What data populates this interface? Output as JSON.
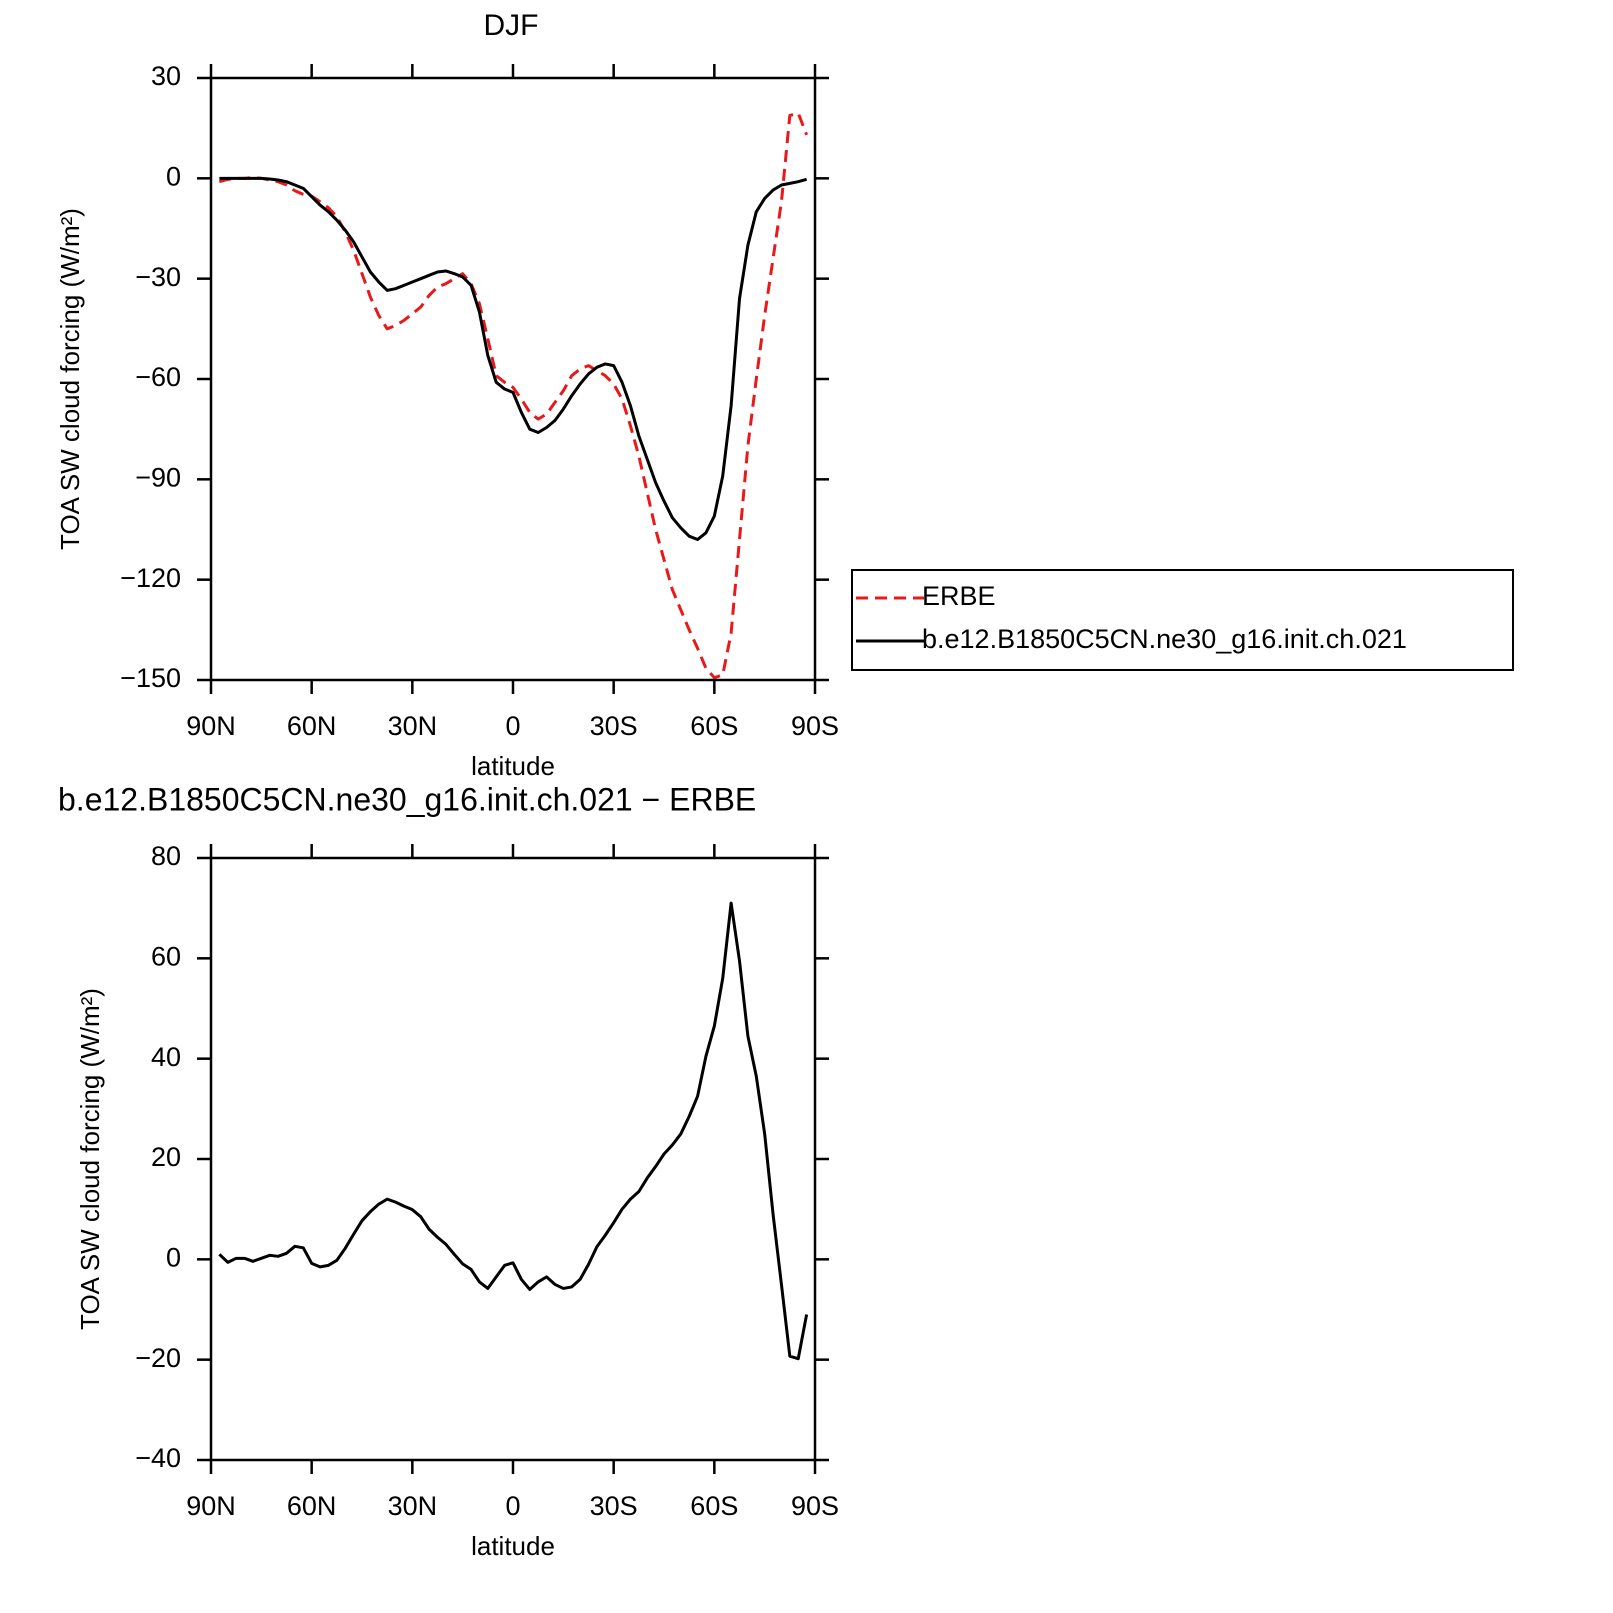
{
  "chart_data": [
    {
      "type": "line",
      "title": "DJF",
      "xlabel": "latitude",
      "ylabel": "TOA SW cloud forcing (W/m²)",
      "x": [
        87.5,
        85,
        82.5,
        80,
        77.5,
        75,
        72.5,
        70,
        67.5,
        65,
        62.5,
        60,
        57.5,
        55,
        52.5,
        50,
        47.5,
        45,
        42.5,
        40,
        37.5,
        35,
        32.5,
        30,
        27.5,
        25,
        22.5,
        20,
        17.5,
        15,
        12.5,
        10,
        7.5,
        5,
        2.5,
        0,
        -2.5,
        -5,
        -7.5,
        -10,
        -12.5,
        -15,
        -17.5,
        -20,
        -22.5,
        -25,
        -27.5,
        -30,
        -32.5,
        -35,
        -37.5,
        -40,
        -42.5,
        -45,
        -47.5,
        -50,
        -52.5,
        -55,
        -57.5,
        -60,
        -62.5,
        -65,
        -67.5,
        -70,
        -72.5,
        -75,
        -77.5,
        -80,
        -82.5,
        -85,
        -87.5
      ],
      "series": [
        {
          "name": "ERBE",
          "color": "#e8191a",
          "dashed": true,
          "values": [
            -1,
            -0.3,
            0,
            0,
            0.3,
            0,
            -0.5,
            -1,
            -2,
            -3.7,
            -4.8,
            -5.3,
            -7,
            -8.8,
            -11.5,
            -16,
            -21.5,
            -28.5,
            -35.5,
            -41,
            -45,
            -44,
            -42.5,
            -40.5,
            -38.5,
            -35,
            -32.5,
            -31.5,
            -30,
            -28.5,
            -31.5,
            -37.5,
            -48,
            -59,
            -61,
            -62.5,
            -66,
            -70,
            -72,
            -70.5,
            -67,
            -63.5,
            -59,
            -57,
            -56,
            -57.5,
            -59,
            -61.5,
            -66,
            -74,
            -83,
            -94,
            -105,
            -114,
            -123,
            -129,
            -135,
            -140.5,
            -146.5,
            -149.3,
            -148.5,
            -136,
            -108,
            -80,
            -60,
            -41,
            -24,
            -7,
            18.8,
            19.5,
            13
          ]
        },
        {
          "name": "b.e12.B1850C5CN.ne30_g16.init.ch.021",
          "color": "#000000",
          "dashed": false,
          "values": [
            0,
            0,
            0,
            0,
            0,
            0,
            -0.2,
            -0.5,
            -1,
            -2,
            -3,
            -5.5,
            -8,
            -10,
            -12.5,
            -15.5,
            -19,
            -23.5,
            -28,
            -31,
            -33.5,
            -33,
            -32,
            -31,
            -30,
            -29,
            -28,
            -27.7,
            -28.5,
            -29.5,
            -32,
            -40,
            -53,
            -61,
            -63,
            -64,
            -70,
            -75,
            -76,
            -74.5,
            -72.4,
            -69,
            -65,
            -61.5,
            -58.5,
            -56.5,
            -55.5,
            -56,
            -61,
            -68,
            -77,
            -84,
            -91,
            -96.5,
            -101.5,
            -104.5,
            -107,
            -108,
            -106,
            -101,
            -89,
            -68,
            -36,
            -20,
            -10,
            -6,
            -3.5,
            -2,
            -1.5,
            -1,
            -0.3
          ]
        }
      ],
      "xlim": [
        90,
        -90
      ],
      "xticks": [
        {
          "value": 90,
          "label": "90N"
        },
        {
          "value": 60,
          "label": "60N"
        },
        {
          "value": 30,
          "label": "30N"
        },
        0,
        {
          "value": -30,
          "label": "30S"
        },
        {
          "value": -60,
          "label": "60S"
        },
        {
          "value": -90,
          "label": "90S"
        }
      ],
      "ylim": [
        -150,
        30
      ],
      "yticks": [
        {
          "value": -150,
          "label": "−150"
        },
        {
          "value": -120,
          "label": "−120"
        },
        {
          "value": -90,
          "label": "−90"
        },
        {
          "value": -60,
          "label": "−60"
        },
        {
          "value": -30,
          "label": "−30"
        },
        0,
        30
      ],
      "legend": "right"
    },
    {
      "type": "line",
      "title": "b.e12.B1850C5CN.ne30_g16.init.ch.021 − ERBE",
      "xlabel": "latitude",
      "ylabel": "TOA SW cloud forcing (W/m²)",
      "x": [
        87.5,
        85,
        82.5,
        80,
        77.5,
        75,
        72.5,
        70,
        67.5,
        65,
        62.5,
        60,
        57.5,
        55,
        52.5,
        50,
        47.5,
        45,
        42.5,
        40,
        37.5,
        35,
        32.5,
        30,
        27.5,
        25,
        22.5,
        20,
        17.5,
        15,
        12.5,
        10,
        7.5,
        5,
        2.5,
        0,
        -2.5,
        -5,
        -7.5,
        -10,
        -12.5,
        -15,
        -17.5,
        -20,
        -22.5,
        -25,
        -27.5,
        -30,
        -32.5,
        -35,
        -37.5,
        -40,
        -42.5,
        -45,
        -47.5,
        -50,
        -52.5,
        -55,
        -57.5,
        -60,
        -62.5,
        -65,
        -67.5,
        -70,
        -72.5,
        -75,
        -77.5,
        -80,
        -82.5,
        -85,
        -87.5
      ],
      "series": [
        {
          "color": "#000000",
          "dashed": false,
          "values": [
            1,
            -0.6,
            0.2,
            0.2,
            -0.4,
            0.2,
            0.8,
            0.6,
            1.2,
            2.6,
            2.3,
            -0.8,
            -1.5,
            -1.2,
            -0.2,
            2.2,
            5,
            7.7,
            9.5,
            11,
            12,
            11.4,
            10.6,
            9.9,
            8.5,
            6,
            4.4,
            3,
            1,
            -0.9,
            -2,
            -4.5,
            -5.8,
            -3.5,
            -1.2,
            -0.7,
            -4,
            -6,
            -4.5,
            -3.5,
            -5,
            -5.8,
            -5.5,
            -4,
            -1,
            2.5,
            4.8,
            7.3,
            10,
            12,
            13.5,
            16.2,
            18.5,
            21,
            22.8,
            25,
            28.5,
            32.5,
            40.5,
            46.5,
            56,
            71,
            59.5,
            44.5,
            36.5,
            25,
            9,
            -5,
            -19.3,
            -19.8,
            -11
          ]
        }
      ],
      "xlim": [
        90,
        -90
      ],
      "xticks": [
        {
          "value": 90,
          "label": "90N"
        },
        {
          "value": 60,
          "label": "60N"
        },
        {
          "value": 30,
          "label": "30N"
        },
        0,
        {
          "value": -30,
          "label": "30S"
        },
        {
          "value": -60,
          "label": "60S"
        },
        {
          "value": -90,
          "label": "90S"
        }
      ],
      "ylim": [
        -40,
        80
      ],
      "yticks": [
        {
          "value": -40,
          "label": "−40"
        },
        {
          "value": -20,
          "label": "−20"
        },
        0,
        20,
        40,
        60,
        80
      ]
    }
  ]
}
